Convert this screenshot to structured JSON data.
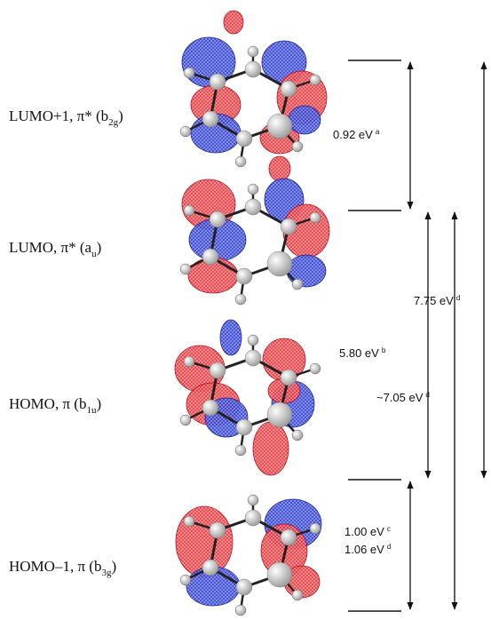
{
  "orbitals": [
    {
      "label": "LUMO+1, π* (b",
      "sub": "2g",
      "end": ")"
    },
    {
      "label": "LUMO, π* (a",
      "sub": "u",
      "end": ")"
    },
    {
      "label": "HOMO, π (b",
      "sub": "1u",
      "end": ")"
    },
    {
      "label": "HOMO–1, π (b",
      "sub": "3g",
      "end": ")"
    }
  ],
  "gaps": [
    {
      "text": "0.92 eV",
      "note": "a"
    },
    {
      "text": "7.75 eV",
      "note": "d"
    },
    {
      "text": "5.80 eV",
      "note": "b"
    },
    {
      "text": "~7.05 eV",
      "note": "d"
    },
    {
      "text": "1.00 eV",
      "note": "c"
    },
    {
      "text": "1.06 eV",
      "note": "d"
    }
  ]
}
